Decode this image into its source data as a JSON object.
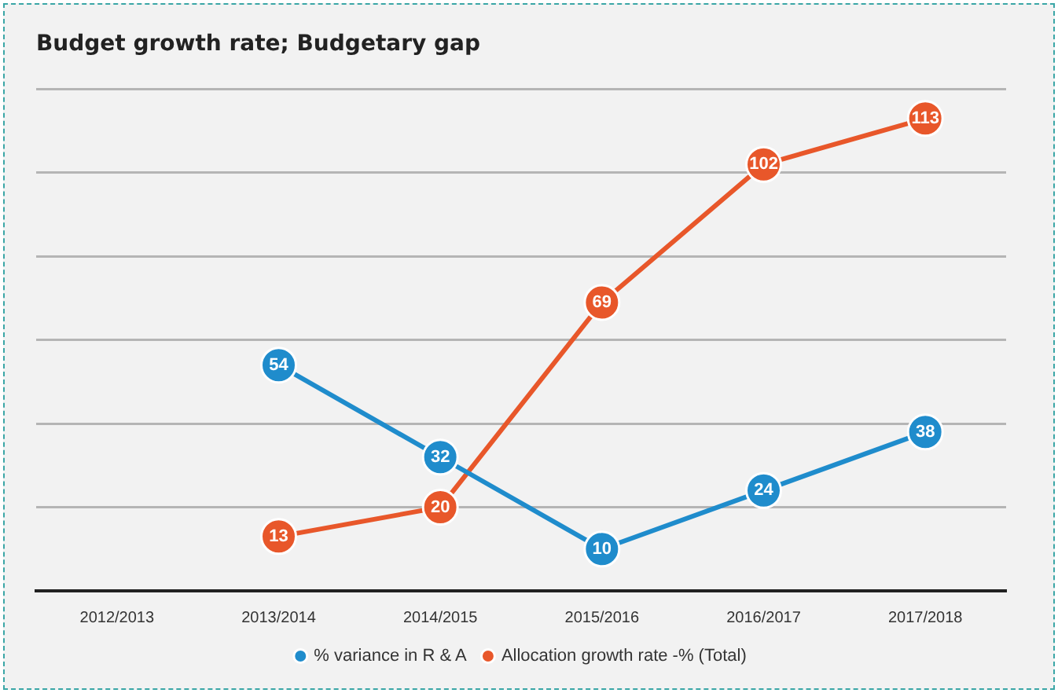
{
  "chart_data": {
    "type": "line",
    "title": "Budget growth rate; Budgetary gap",
    "categories": [
      "2012/2013",
      "2013/2014",
      "2014/2015",
      "2015/2016",
      "2016/2017",
      "2017/2018"
    ],
    "series": [
      {
        "name": "% variance in R & A",
        "color": "#1f8ccc",
        "values": [
          null,
          54,
          32,
          10,
          24,
          38
        ]
      },
      {
        "name": "Allocation growth rate -% (Total)",
        "color": "#e8572a",
        "values": [
          null,
          13,
          20,
          69,
          102,
          113
        ]
      }
    ],
    "ylim": [
      0,
      120
    ],
    "yticks": [
      {
        "value": 0,
        "label": null
      },
      {
        "value": 20,
        "label": null
      },
      {
        "value": 40,
        "label": null
      },
      {
        "value": 60,
        "label": null
      },
      {
        "value": 80,
        "label": null
      },
      {
        "value": 100,
        "label": null
      },
      {
        "value": 120,
        "label": null
      }
    ],
    "tick_labels": "x",
    "grid": "y",
    "legend": "bottom",
    "marker": "circle",
    "line_style": "solid",
    "data_labels": true
  }
}
